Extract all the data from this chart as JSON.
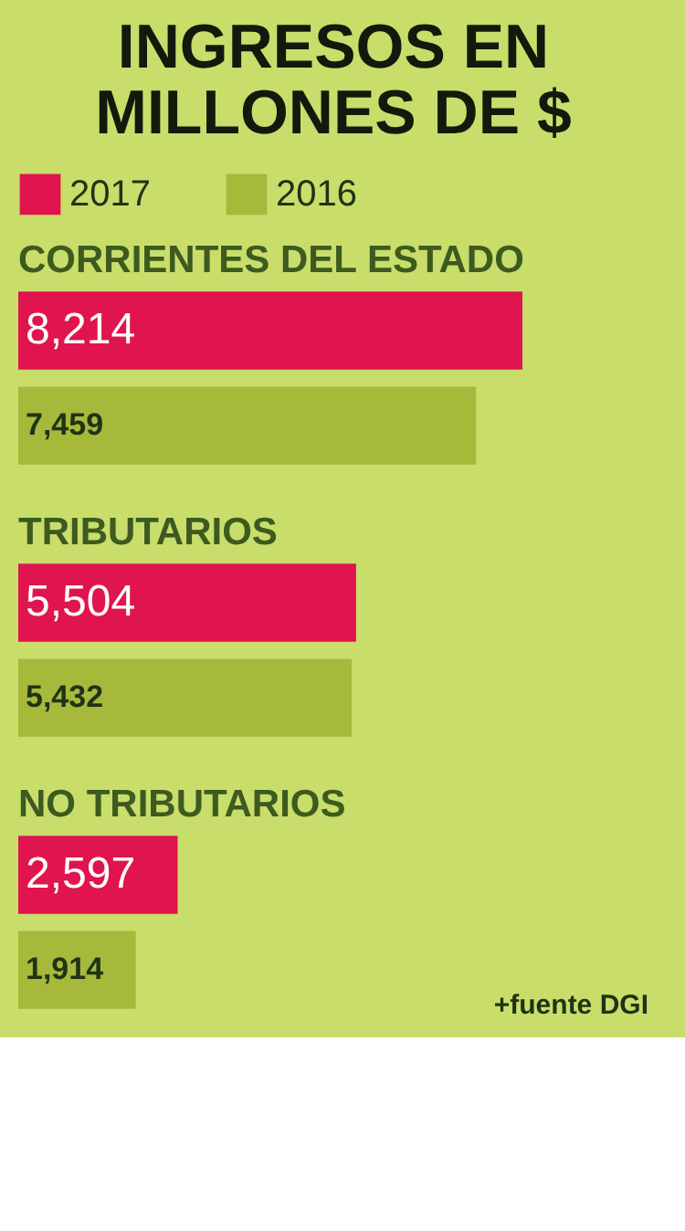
{
  "chart_data": {
    "type": "bar",
    "orientation": "horizontal",
    "title": "INGRESOS EN MILLONES DE $",
    "categories": [
      "CORRIENTES DEL ESTADO",
      "TRIBUTARIOS",
      "NO TRIBUTARIOS"
    ],
    "series": [
      {
        "name": "2017",
        "color": "#e0144e",
        "values": [
          8214,
          5504,
          2597
        ],
        "value_labels": [
          "8,214",
          "5,504",
          "2,597"
        ]
      },
      {
        "name": "2016",
        "color": "#a6b93a",
        "values": [
          7459,
          5432,
          1914
        ],
        "value_labels": [
          "7,459",
          "5,432",
          "1,914"
        ]
      }
    ],
    "legend": "top",
    "annotations": [
      "+fuente DGI"
    ]
  }
}
